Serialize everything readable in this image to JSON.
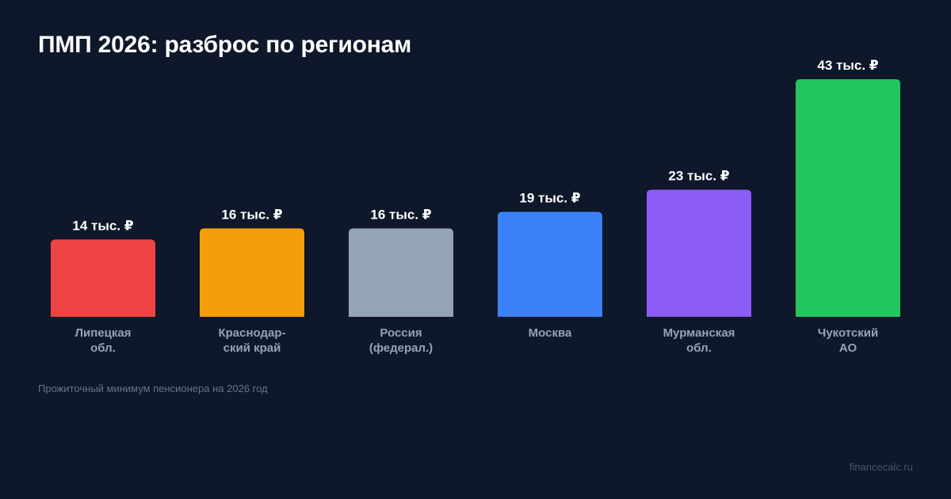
{
  "title": "ПМП 2026: разброс по регионам",
  "caption": "Прожиточный минимум пенсионера на 2026 год",
  "source": "financecalc.ru",
  "colors": {
    "background": "#0f172a",
    "label_text": "#94a3b8",
    "value_text": "#ffffff"
  },
  "chart_data": {
    "type": "bar",
    "categories": [
      [
        "Липецкая",
        "обл."
      ],
      [
        "Краснодар-",
        "ский край"
      ],
      [
        "Россия",
        "(федерал.)"
      ],
      [
        "Москва"
      ],
      [
        "Мурманская",
        "обл."
      ],
      [
        "Чукотский",
        "АО"
      ]
    ],
    "values": [
      14,
      16,
      16,
      19,
      23,
      43
    ],
    "value_labels": [
      "14 тыс. ₽",
      "16 тыс. ₽",
      "16 тыс. ₽",
      "19 тыс. ₽",
      "23 тыс. ₽",
      "43 тыс. ₽"
    ],
    "colors": [
      "#ef4444",
      "#f59e0b",
      "#94a3b8",
      "#3b82f6",
      "#8b5cf6",
      "#22c55e"
    ],
    "unit": "тыс. ₽",
    "ylim": [
      0,
      43
    ],
    "grid": false,
    "legend": "none"
  }
}
